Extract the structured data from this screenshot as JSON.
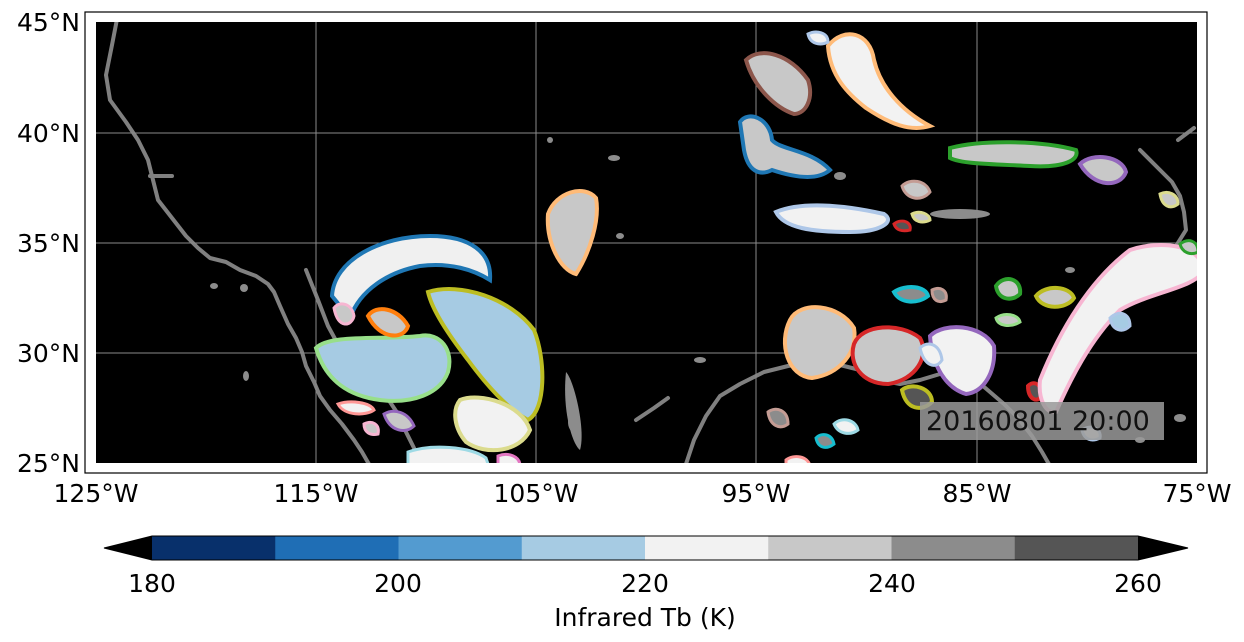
{
  "map": {
    "lat_labels": [
      "45°N",
      "40°N",
      "35°N",
      "30°N",
      "25°N"
    ],
    "lon_labels": [
      "125°W",
      "115°W",
      "105°W",
      "95°W",
      "85°W",
      "75°W"
    ],
    "extent": {
      "lon": [
        -125,
        -75
      ],
      "lat": [
        25,
        45
      ]
    },
    "background_color": "#000000",
    "coastline_color": "#808080",
    "timestamp": "20160801 20:00"
  },
  "colorbar": {
    "label": "Infrared Tb (K)",
    "tick_labels": [
      "180",
      "200",
      "220",
      "240",
      "260"
    ],
    "colors": [
      "#08306b",
      "#1f6eb5",
      "#539bd0",
      "#a6cbe3",
      "#f2f2f2",
      "#c8c8c8",
      "#8c8c8c",
      "#555555"
    ],
    "extend_colors": [
      "#000000",
      "#000000"
    ]
  },
  "tracked_contour_colors": [
    "#1f77b4",
    "#ff7f0e",
    "#2ca02c",
    "#d62728",
    "#9467bd",
    "#8c564b",
    "#e377c2",
    "#bcbd22",
    "#17becf",
    "#aec7e8",
    "#ffbb78",
    "#98df8a",
    "#ff9896",
    "#c5b0d5",
    "#c49c94",
    "#f7b6d2",
    "#dbdb8d",
    "#9edae5"
  ]
}
